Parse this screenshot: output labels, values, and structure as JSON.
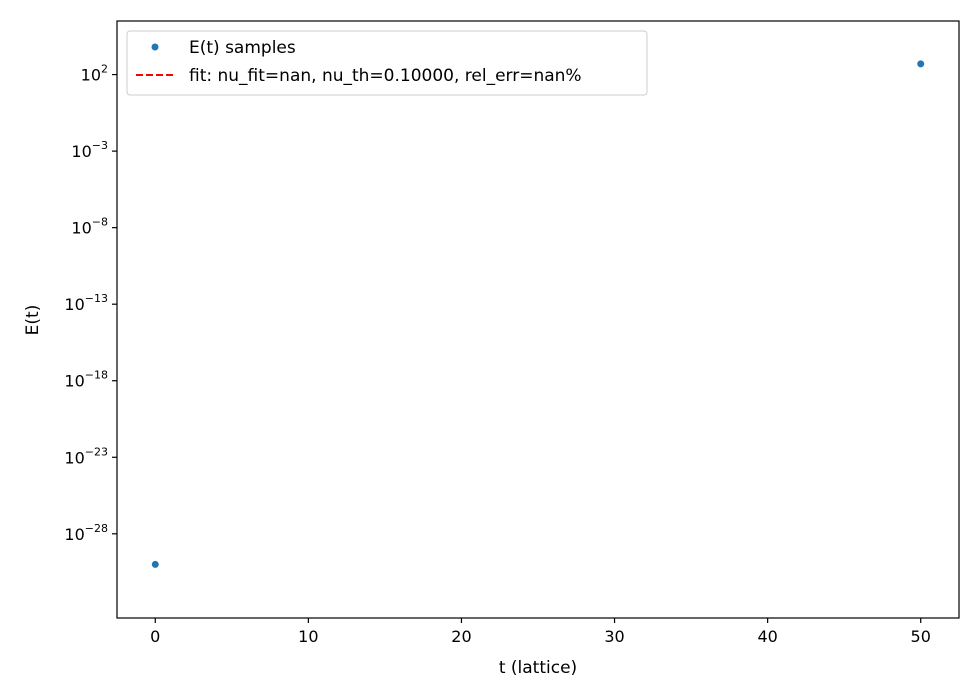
{
  "chart_data": {
    "type": "scatter",
    "xlabel": "t (lattice)",
    "ylabel": "E(t)",
    "xlim": [
      -2.5,
      52.5
    ],
    "ylim_log10": [
      -33.5,
      5.5
    ],
    "y_scale": "log",
    "grid": false,
    "legend_placement": "top-left",
    "x_ticks": [
      {
        "value": 0,
        "label": "0"
      },
      {
        "value": 10,
        "label": "10"
      },
      {
        "value": 20,
        "label": "20"
      },
      {
        "value": 30,
        "label": "30"
      },
      {
        "value": 40,
        "label": "40"
      },
      {
        "value": 50,
        "label": "50"
      }
    ],
    "y_ticks": [
      {
        "exp": 2,
        "base": "10",
        "sup": "2"
      },
      {
        "exp": -3,
        "base": "10",
        "sup": "−3"
      },
      {
        "exp": -8,
        "base": "10",
        "sup": "−8"
      },
      {
        "exp": -13,
        "base": "10",
        "sup": "−13"
      },
      {
        "exp": -18,
        "base": "10",
        "sup": "−18"
      },
      {
        "exp": -23,
        "base": "10",
        "sup": "−23"
      },
      {
        "exp": -28,
        "base": "10",
        "sup": "−28"
      }
    ],
    "series": [
      {
        "name": "E(t) samples",
        "style": "points",
        "color": "#1f77b4",
        "points": [
          {
            "x": 0,
            "y": 1e-30
          },
          {
            "x": 50,
            "y": 500
          }
        ]
      },
      {
        "name": "fit: nu_fit=nan, nu_th=0.10000, rel_err=nan%",
        "style": "dashed-line",
        "color": "#ff0000",
        "points": []
      }
    ]
  }
}
